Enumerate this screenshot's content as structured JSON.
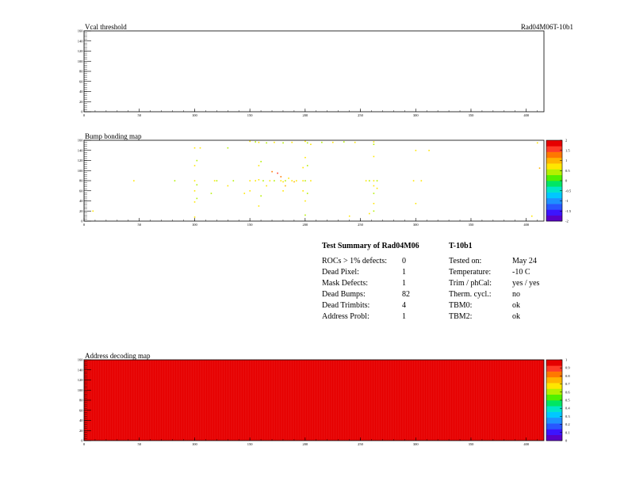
{
  "run_id": "Rad04M06T-10b1",
  "panels": {
    "vcal": {
      "title": "Vcal threshold"
    },
    "bump": {
      "title": "Bump bonding map"
    },
    "address": {
      "title": "Address decoding map"
    }
  },
  "summary": {
    "title_left": "Test Summary of Rad04M06",
    "title_right": "T-10b1",
    "left_rows": [
      {
        "label": "ROCs > 1% defects:",
        "value": "0"
      },
      {
        "label": "Dead Pixel:",
        "value": "1"
      },
      {
        "label": "Mask Defects:",
        "value": "1"
      },
      {
        "label": "Dead Bumps:",
        "value": "82"
      },
      {
        "label": "Dead Trimbits:",
        "value": "4"
      },
      {
        "label": "Address Probl:",
        "value": "1"
      }
    ],
    "right_rows": [
      {
        "label": "Tested on:",
        "value": "May 24"
      },
      {
        "label": "Temperature:",
        "value": "-10 C"
      },
      {
        "label": "Trim / phCal:",
        "value": "yes / yes"
      },
      {
        "label": "Therm. cycl.:",
        "value": "no"
      },
      {
        "label": "TBM0:",
        "value": "ok"
      },
      {
        "label": "TBM2:",
        "value": "ok"
      }
    ]
  },
  "chart_data": [
    {
      "type": "heatmap",
      "title": "Vcal threshold",
      "xlim": [
        0,
        416
      ],
      "ylim": [
        0,
        160
      ],
      "x_ticks": [
        "0",
        "50",
        "100",
        "150",
        "200",
        "250",
        "300",
        "350",
        "400"
      ],
      "y_ticks": [
        "0",
        "20",
        "40",
        "60",
        "80",
        "100",
        "120",
        "140",
        "160"
      ],
      "points": []
    },
    {
      "type": "heatmap",
      "title": "Bump bonding map",
      "xlim": [
        0,
        416
      ],
      "ylim": [
        0,
        160
      ],
      "x_ticks": [
        "0",
        "50",
        "100",
        "150",
        "200",
        "250",
        "300",
        "350",
        "400"
      ],
      "y_ticks": [
        "0",
        "20",
        "40",
        "60",
        "80",
        "100",
        "120",
        "140",
        "160"
      ],
      "z_ticks": [
        "-2",
        "-1.5",
        "-1",
        "-0.5",
        "0",
        "0.5",
        "1",
        "1.5",
        "2"
      ],
      "points": [
        [
          100,
          145,
          0.6
        ],
        [
          105,
          145,
          0.6
        ],
        [
          130,
          145,
          0.5
        ],
        [
          150,
          158,
          0.6
        ],
        [
          155,
          157,
          0.4
        ],
        [
          158,
          156,
          0.6
        ],
        [
          165,
          155,
          0.5
        ],
        [
          172,
          156,
          0.6
        ],
        [
          180,
          155,
          0.4
        ],
        [
          188,
          156,
          0.6
        ],
        [
          200,
          158,
          0.6
        ],
        [
          202,
          155,
          0.5
        ],
        [
          205,
          152,
          0.6
        ],
        [
          215,
          156,
          0.4
        ],
        [
          225,
          156,
          0.6
        ],
        [
          235,
          157,
          0.5
        ],
        [
          245,
          156,
          0.6
        ],
        [
          262,
          157,
          0.6
        ],
        [
          262,
          152,
          0.5
        ],
        [
          300,
          140,
          0.6
        ],
        [
          312,
          140,
          0.6
        ],
        [
          100,
          110,
          0.6
        ],
        [
          102,
          120,
          0.5
        ],
        [
          158,
          110,
          0.6
        ],
        [
          160,
          118,
          0.5
        ],
        [
          198,
          106,
          0.6
        ],
        [
          200,
          126,
          0.6
        ],
        [
          202,
          110,
          0.5
        ],
        [
          262,
          128,
          0.6
        ],
        [
          45,
          80,
          0.6
        ],
        [
          82,
          80,
          0.5
        ],
        [
          100,
          80,
          0.6
        ],
        [
          102,
          72,
          0.5
        ],
        [
          118,
          80,
          0.6
        ],
        [
          120,
          80,
          0.5
        ],
        [
          150,
          80,
          0.6
        ],
        [
          155,
          80,
          0.6
        ],
        [
          158,
          82,
          0.7
        ],
        [
          162,
          80,
          0.4
        ],
        [
          168,
          80,
          0.6
        ],
        [
          172,
          80,
          0.5
        ],
        [
          178,
          80,
          0.6
        ],
        [
          180,
          78,
          0.7
        ],
        [
          182,
          80,
          0.5
        ],
        [
          188,
          80,
          0.6
        ],
        [
          192,
          80,
          0.6
        ],
        [
          198,
          80,
          0.6
        ],
        [
          200,
          80,
          0.5
        ],
        [
          205,
          80,
          0.6
        ],
        [
          255,
          80,
          0.6
        ],
        [
          258,
          80,
          0.5
        ],
        [
          262,
          80,
          0.6
        ],
        [
          265,
          80,
          0.5
        ],
        [
          298,
          80,
          0.6
        ],
        [
          305,
          80,
          0.6
        ],
        [
          100,
          60,
          0.6
        ],
        [
          102,
          45,
          0.5
        ],
        [
          100,
          38,
          0.6
        ],
        [
          115,
          55,
          0.5
        ],
        [
          130,
          70,
          0.6
        ],
        [
          135,
          80,
          0.5
        ],
        [
          150,
          60,
          0.6
        ],
        [
          158,
          30,
          0.6
        ],
        [
          160,
          50,
          0.5
        ],
        [
          165,
          70,
          0.6
        ],
        [
          175,
          95,
          1.5
        ],
        [
          178,
          88,
          1.2
        ],
        [
          180,
          60,
          0.8
        ],
        [
          182,
          70,
          1.0
        ],
        [
          185,
          85,
          0.7
        ],
        [
          190,
          78,
          0.9
        ],
        [
          198,
          60,
          0.6
        ],
        [
          200,
          40,
          0.6
        ],
        [
          202,
          55,
          0.5
        ],
        [
          262,
          70,
          0.6
        ],
        [
          262,
          55,
          0.5
        ],
        [
          262,
          35,
          0.6
        ],
        [
          262,
          20,
          0.5
        ],
        [
          265,
          65,
          0.6
        ],
        [
          258,
          15,
          0.6
        ],
        [
          240,
          10,
          0.6
        ],
        [
          200,
          12,
          0.5
        ],
        [
          8,
          20,
          0.6
        ],
        [
          100,
          8,
          0.6
        ],
        [
          300,
          35,
          0.6
        ],
        [
          410,
          155,
          0.6
        ],
        [
          412,
          105,
          1.0
        ],
        [
          405,
          10,
          0.6
        ],
        [
          145,
          55,
          0.6
        ],
        [
          170,
          98,
          1.3
        ]
      ]
    },
    {
      "type": "heatmap",
      "title": "Address decoding map",
      "xlim": [
        0,
        416
      ],
      "ylim": [
        0,
        160
      ],
      "x_ticks": [
        "0",
        "50",
        "100",
        "150",
        "200",
        "250",
        "300",
        "350",
        "400"
      ],
      "y_ticks": [
        "0",
        "20",
        "40",
        "60",
        "80",
        "100",
        "120",
        "140",
        "160"
      ],
      "z_ticks": [
        "0",
        "0.1",
        "0.2",
        "0.3",
        "0.4",
        "0.5",
        "0.6",
        "0.7",
        "0.8",
        "0.9",
        "1"
      ],
      "uniform_value": 1,
      "points": []
    }
  ]
}
